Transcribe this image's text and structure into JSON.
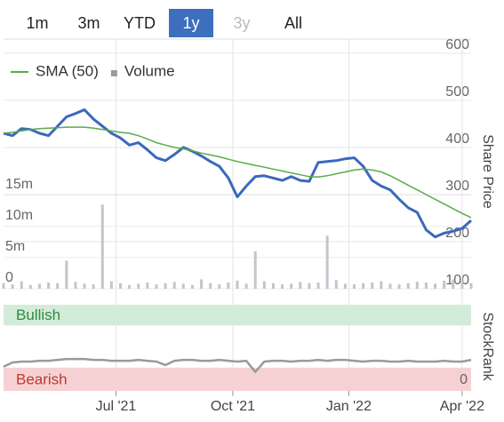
{
  "range_buttons": {
    "options": [
      "1m",
      "3m",
      "YTD",
      "1y",
      "3y",
      "All"
    ],
    "selected": 3,
    "disabled": [
      4
    ]
  },
  "chart_data": [
    {
      "type": "line",
      "y_label": "Share Price",
      "ylim": [
        100,
        630
      ],
      "yticks": [
        100,
        200,
        300,
        400,
        500,
        600
      ],
      "y2lim": [
        0,
        40000000
      ],
      "y2ticks": [
        {
          "value": 0,
          "label": "0"
        },
        {
          "value": 5000000,
          "label": "5m"
        },
        {
          "value": 10000000,
          "label": "10m"
        },
        {
          "value": 15000000,
          "label": "15m"
        }
      ],
      "xlim": [
        0,
        52
      ],
      "xticks": [
        {
          "value": 12.5,
          "label": "Jul '21"
        },
        {
          "value": 25.5,
          "label": "Oct '21"
        },
        {
          "value": 38.4,
          "label": "Jan '22"
        },
        {
          "value": 51,
          "label": "Apr '22"
        }
      ],
      "grid": true,
      "legend": "top-left",
      "series": [
        {
          "color": "#3b68bd",
          "values": [
            430,
            425,
            440,
            438,
            430,
            425,
            445,
            465,
            472,
            480,
            460,
            445,
            430,
            420,
            405,
            410,
            395,
            378,
            372,
            385,
            400,
            392,
            382,
            370,
            360,
            335,
            295,
            318,
            338,
            340,
            335,
            330,
            338,
            330,
            328,
            368,
            370,
            372,
            376,
            378,
            360,
            330,
            318,
            310,
            290,
            272,
            262,
            225,
            210,
            218,
            222,
            228,
            245
          ]
        },
        {
          "name": "SMA (50)",
          "color": "#5aab4c",
          "values": [
            430,
            432,
            435,
            438,
            440,
            441,
            442,
            443,
            443,
            443,
            441,
            438,
            435,
            432,
            430,
            425,
            418,
            410,
            405,
            400,
            397,
            393,
            388,
            384,
            380,
            375,
            370,
            366,
            362,
            358,
            354,
            350,
            346,
            342,
            338,
            337,
            340,
            344,
            348,
            352,
            354,
            352,
            348,
            340,
            330,
            320,
            310,
            300,
            290,
            280,
            270,
            260,
            251
          ]
        },
        {
          "name": "Volume",
          "type": "bar",
          "axis": "y2",
          "color": "#c4c4cc",
          "values": [
            900000,
            700000,
            1200000,
            600000,
            800000,
            1000000,
            900000,
            4500000,
            1100000,
            800000,
            700000,
            13500000,
            1200000,
            900000,
            600000,
            800000,
            1000000,
            700000,
            900000,
            1100000,
            800000,
            600000,
            1500000,
            900000,
            700000,
            1000000,
            1300000,
            800000,
            6000000,
            1200000,
            900000,
            700000,
            800000,
            1100000,
            900000,
            1000000,
            8500000,
            1400000,
            800000,
            700000,
            900000,
            1000000,
            1200000,
            800000,
            700000,
            900000,
            1100000,
            1000000,
            800000,
            1300000,
            1500000,
            1200000,
            900000
          ]
        }
      ]
    },
    {
      "type": "line",
      "y_label": "StockRank",
      "ylim": [
        0,
        100
      ],
      "yticks": [
        0
      ],
      "zones": [
        {
          "label": "Bullish",
          "range": [
            76,
            100
          ],
          "color": "#d3ecd9",
          "text_color": "#2f8a42"
        },
        {
          "label": "Bearish",
          "range": [
            0,
            27
          ],
          "color": "#f6d1d4",
          "text_color": "#c0392b"
        }
      ],
      "series": [
        {
          "color": "#9a9a9a",
          "values": [
            28,
            33,
            34,
            34,
            35,
            35,
            36,
            37,
            37,
            37,
            36,
            36,
            35,
            35,
            35,
            36,
            35,
            34,
            30,
            35,
            36,
            36,
            35,
            35,
            36,
            35,
            34,
            35,
            22,
            34,
            35,
            35,
            34,
            35,
            35,
            36,
            35,
            36,
            36,
            35,
            34,
            35,
            35,
            34,
            34,
            35,
            34,
            34,
            34,
            35,
            34,
            34,
            36
          ]
        }
      ]
    }
  ]
}
